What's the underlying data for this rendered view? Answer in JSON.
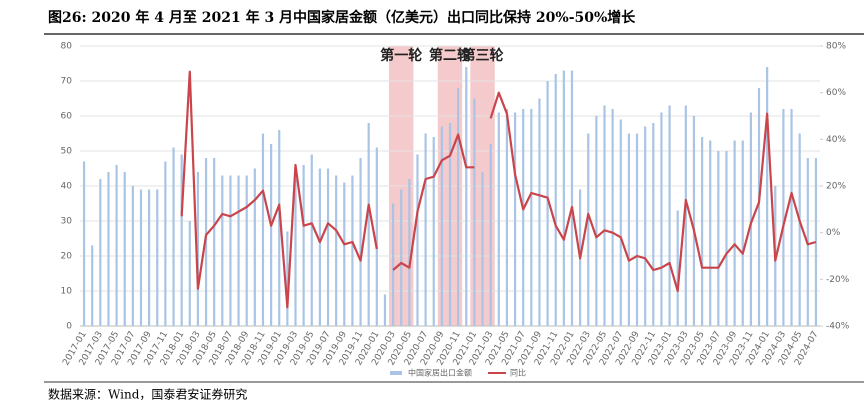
{
  "chart_data": {
    "type": "bar-line",
    "title": "图26:  2020 年 4 月至 2021 年 3 月中国家居金额（亿美元）出口同比保持 20%-50%增长",
    "source": "数据来源：Wind，国泰君安证券研究",
    "categories": [
      "2017-01",
      null,
      "2017-03",
      null,
      "2017-05",
      null,
      "2017-07",
      null,
      "2017-09",
      null,
      "2017-11",
      null,
      "2018-01",
      null,
      "2018-03",
      null,
      "2018-05",
      null,
      "2018-07",
      null,
      "2018-09",
      null,
      "2018-11",
      null,
      "2019-01",
      null,
      "2019-03",
      null,
      "2019-05",
      null,
      "2019-07",
      null,
      "2019-09",
      null,
      "2019-11",
      null,
      "2020-01",
      null,
      "2020-03",
      null,
      "2020-05",
      null,
      "2020-07",
      null,
      "2020-09",
      null,
      "2020-11",
      null,
      "2021-01",
      null,
      "2021-03",
      null,
      "2021-05",
      null,
      "2021-07",
      null,
      "2021-09",
      null,
      "2021-11",
      null,
      "2022-01",
      null,
      "2022-03",
      null,
      "2022-05",
      null,
      "2022-07",
      null,
      "2022-09",
      null,
      "2022-11",
      null,
      "2023-01",
      null,
      "2023-03",
      null,
      "2023-05",
      null,
      "2023-07",
      null,
      "2023-09",
      null,
      "2023-11",
      null,
      "2024-01",
      null,
      "2024-03",
      null,
      "2024-05",
      null,
      "2024-07"
    ],
    "series": [
      {
        "name": "中国家居出口金额",
        "type": "bar",
        "color": "#a9c4e4",
        "values": [
          47,
          23,
          42,
          44,
          46,
          44,
          40,
          39,
          39,
          39,
          47,
          51,
          49,
          30,
          44,
          48,
          48,
          43,
          43,
          43,
          43,
          45,
          55,
          52,
          56,
          27,
          42,
          46,
          49,
          45,
          45,
          43,
          41,
          43,
          48,
          58,
          51,
          9,
          35,
          39,
          42,
          49,
          55,
          54,
          57,
          58,
          68,
          74,
          65,
          44,
          52,
          61,
          62,
          61,
          62,
          62,
          65,
          70,
          72,
          73,
          73,
          39,
          55,
          60,
          63,
          62,
          59,
          55,
          55,
          57,
          58,
          61,
          63,
          33,
          63,
          60,
          54,
          53,
          50,
          50,
          53,
          53,
          61,
          68,
          74,
          40,
          62,
          62,
          55,
          48,
          48
        ]
      },
      {
        "name": "同比",
        "type": "line",
        "axis": "y2",
        "color": "#c9454b",
        "values": [
          null,
          null,
          null,
          null,
          null,
          null,
          null,
          null,
          null,
          null,
          null,
          null,
          7,
          69,
          -24,
          -1,
          3,
          8,
          7,
          9,
          11,
          14,
          18,
          3,
          12,
          -32,
          29,
          3,
          4,
          -4,
          4,
          1,
          -5,
          -4,
          -12,
          12,
          -7,
          null,
          -16,
          -13,
          -15,
          9,
          23,
          24,
          31,
          33,
          42,
          28,
          28,
          null,
          49,
          60,
          51,
          25,
          10,
          17,
          16,
          15,
          3,
          -3,
          11,
          -11,
          8,
          -2,
          1,
          0,
          -2,
          -12,
          -10,
          -11,
          -16,
          -15,
          -13,
          -25,
          14,
          1,
          -15,
          -15,
          -15,
          -9,
          -5,
          -9,
          4,
          13,
          51,
          -12,
          3,
          17,
          5,
          -5,
          -4
        ]
      }
    ],
    "ylim": [
      0,
      80
    ],
    "yticks": [
      0,
      10,
      20,
      30,
      40,
      50,
      60,
      70,
      80
    ],
    "y2lim": [
      -40,
      80
    ],
    "y2ticks": [
      {
        "value": -40,
        "label": "-40%"
      },
      {
        "value": -20,
        "label": "-20%"
      },
      {
        "value": 0,
        "label": "0%"
      },
      {
        "value": 20,
        "label": "20%"
      },
      {
        "value": 40,
        "label": "40%"
      },
      {
        "value": 60,
        "label": "60%"
      },
      {
        "value": 80,
        "label": "80%"
      }
    ],
    "grid": true,
    "annotations": [
      {
        "text": "第一轮",
        "start": "2020-03",
        "end": "2020-05"
      },
      {
        "text": "第二轮",
        "start": "2020-09",
        "end": "2020-11"
      },
      {
        "text": "第三轮",
        "start": "2021-01",
        "end": "2021-03"
      }
    ]
  }
}
